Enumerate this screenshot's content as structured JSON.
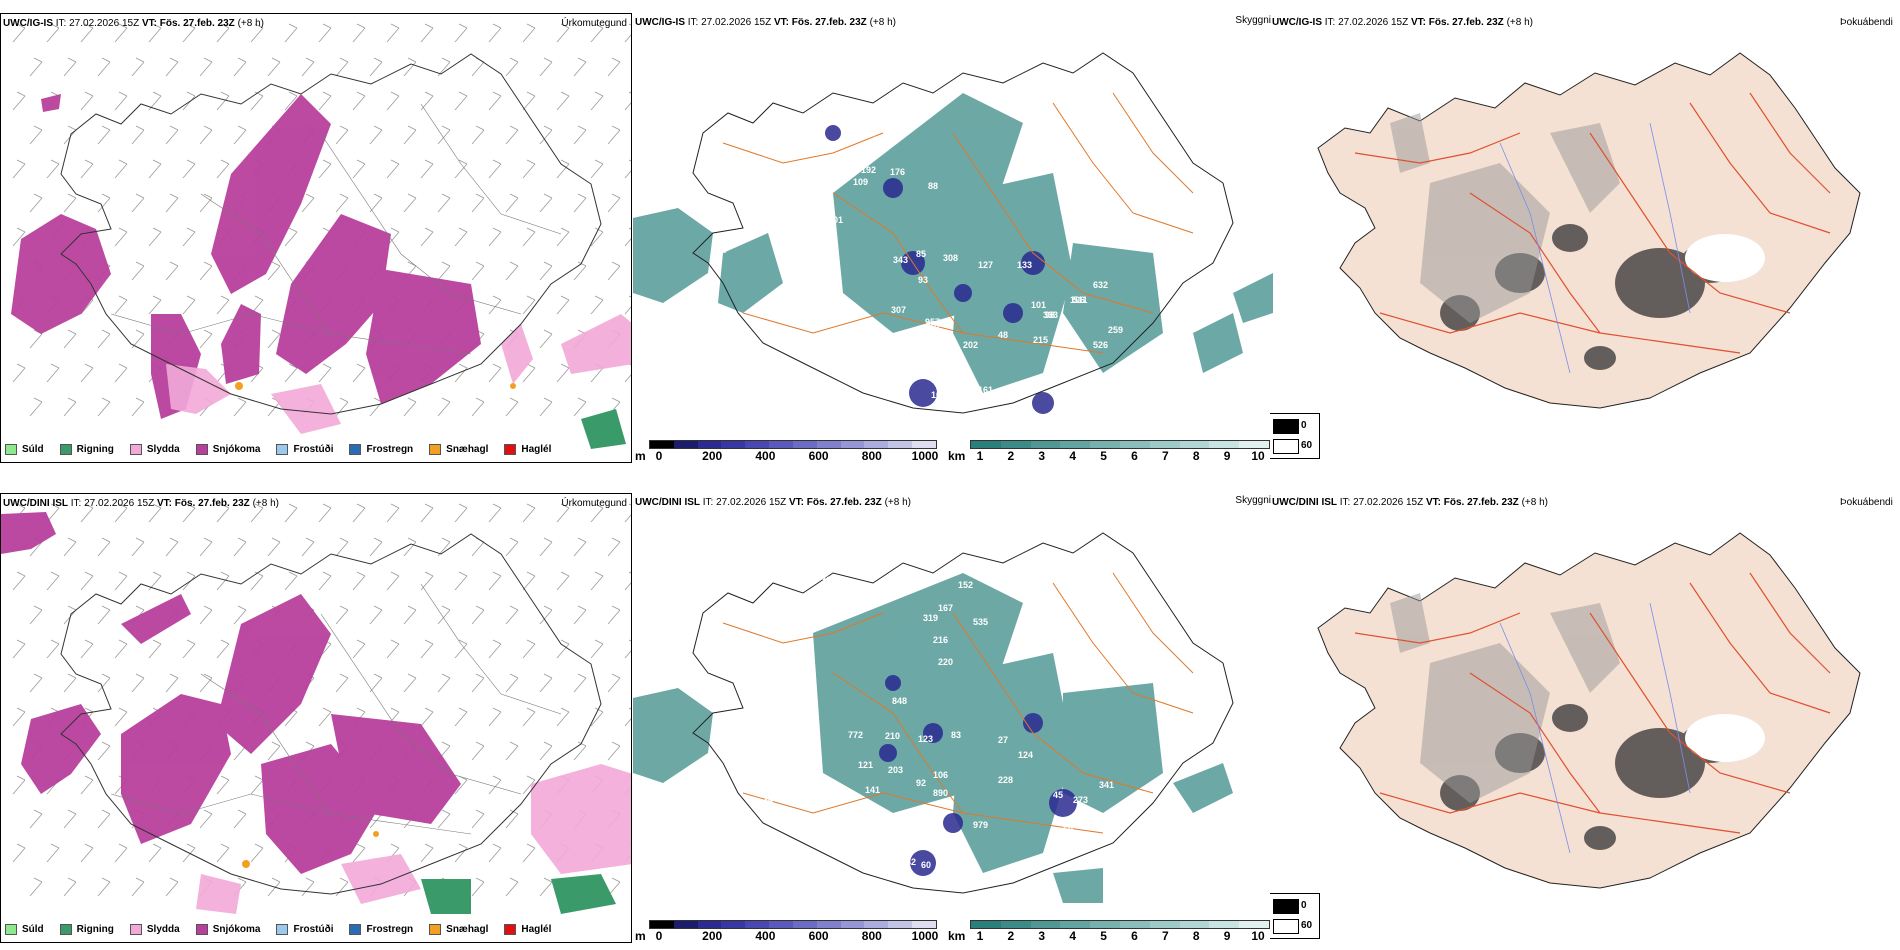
{
  "rows": [
    {
      "model": "UWC/IG-IS",
      "it_label": "IT:",
      "it_time": "27.02.2026 15Z",
      "vt_label": "VT:",
      "vt_time": "Fös. 27.feb. 23Z",
      "lead": "(+8 h)"
    },
    {
      "model": "UWC/DINI ISL",
      "it_label": "IT:",
      "it_time": "27.02.2026 15Z",
      "vt_label": "VT:",
      "vt_time": "Fös. 27.feb. 23Z",
      "lead": "(+8 h)"
    }
  ],
  "panel_titles": {
    "precip_type": "Úrkomutegund",
    "visibility": "Skyggni",
    "fog": "Þokuábendi"
  },
  "precip_legend": [
    {
      "label": "Súld",
      "color": "#8ee88e"
    },
    {
      "label": "Rigning",
      "color": "#3a9a6a"
    },
    {
      "label": "Slydda",
      "color": "#f2a8d8"
    },
    {
      "label": "Snjókoma",
      "color": "#b8409c"
    },
    {
      "label": "Frostúði",
      "color": "#9cc8ee"
    },
    {
      "label": "Frostregn",
      "color": "#2a6cb4"
    },
    {
      "label": "Snæhagl",
      "color": "#f2a020"
    },
    {
      "label": "Haglél",
      "color": "#e01010"
    }
  ],
  "visibility_scale_m": {
    "unit": "m",
    "ticks": [
      "0",
      "200",
      "400",
      "600",
      "800",
      "1000"
    ],
    "colors": [
      "#000000",
      "#1c1c6c",
      "#2a2a90",
      "#3838a4",
      "#4848b0",
      "#5a5abc",
      "#6c6cc4",
      "#8080cc",
      "#9696d6",
      "#acacde",
      "#c4c4e6",
      "#dedef0"
    ]
  },
  "visibility_scale_km": {
    "unit": "km",
    "ticks": [
      "1",
      "2",
      "3",
      "4",
      "5",
      "6",
      "7",
      "8",
      "9",
      "10"
    ],
    "colors": [
      "#2a7f7b",
      "#3c8b87",
      "#4f9894",
      "#62a4a1",
      "#76b1ae",
      "#8abdbb",
      "#9ecac8",
      "#b2d6d5",
      "#c8e3e2",
      "#e0f0ef"
    ]
  },
  "fog_key": {
    "high": "0",
    "low": "60"
  },
  "visibility_labels_top": [
    "209",
    "333",
    "180",
    "192",
    "176",
    "88",
    "109",
    "101",
    "87",
    "343",
    "85",
    "308",
    "127",
    "133",
    "101",
    "106",
    "98",
    "93",
    "307",
    "957",
    "333",
    "511",
    "632",
    "259",
    "526",
    "867",
    "48",
    "215",
    "88",
    "202",
    "83",
    "108",
    "76",
    "161"
  ],
  "visibility_labels_bottom": [
    "308",
    "584",
    "152",
    "167",
    "319",
    "535",
    "216",
    "220",
    "848",
    "772",
    "210",
    "123",
    "83",
    "27",
    "124",
    "121",
    "203",
    "106",
    "228",
    "92",
    "141",
    "890",
    "45",
    "273",
    "341",
    "169",
    "34",
    "979",
    "50",
    "87",
    "253",
    "82",
    "60",
    "68"
  ]
}
